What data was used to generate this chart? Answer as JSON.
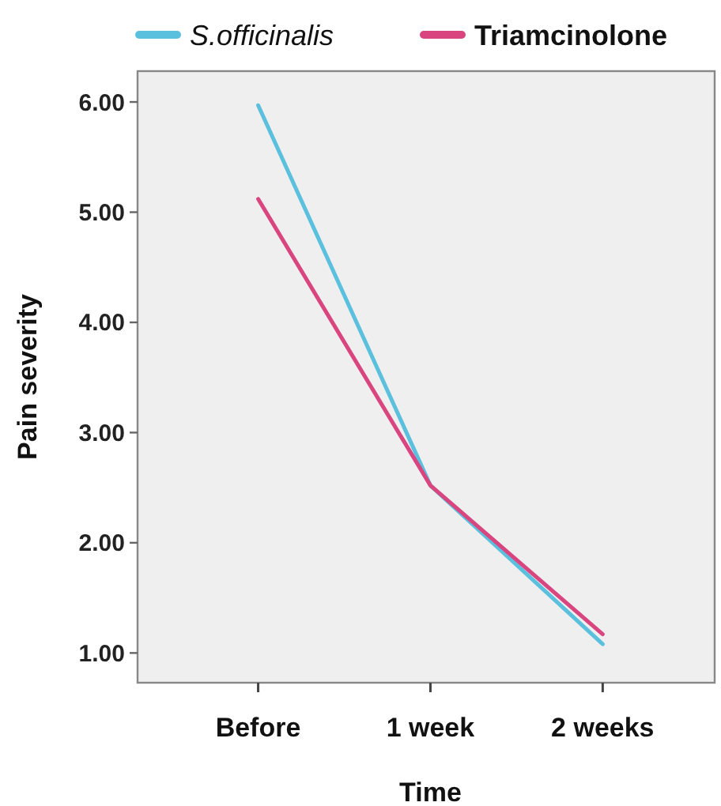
{
  "chart_data": {
    "type": "line",
    "xlabel": "Time",
    "ylabel": "Pain severity",
    "categories": [
      "Before",
      "1 week",
      "2 weeks"
    ],
    "series": [
      {
        "name": "S.officinalis",
        "color": "#5bc0de",
        "values": [
          5.97,
          2.52,
          1.08
        ]
      },
      {
        "name": "Triamcinolone",
        "color": "#d9457f",
        "values": [
          5.12,
          2.52,
          1.17
        ]
      }
    ],
    "ylim": [
      0.73,
      6.28
    ],
    "yticks": [
      {
        "value": 1,
        "label": "1.00"
      },
      {
        "value": 2,
        "label": "2.00"
      },
      {
        "value": 3,
        "label": "3.00"
      },
      {
        "value": 4,
        "label": "4.00"
      },
      {
        "value": 5,
        "label": "5.00"
      },
      {
        "value": 6,
        "label": "6.00"
      }
    ],
    "grid": false,
    "legend": "top",
    "marker": "none",
    "line_style": "solid"
  }
}
